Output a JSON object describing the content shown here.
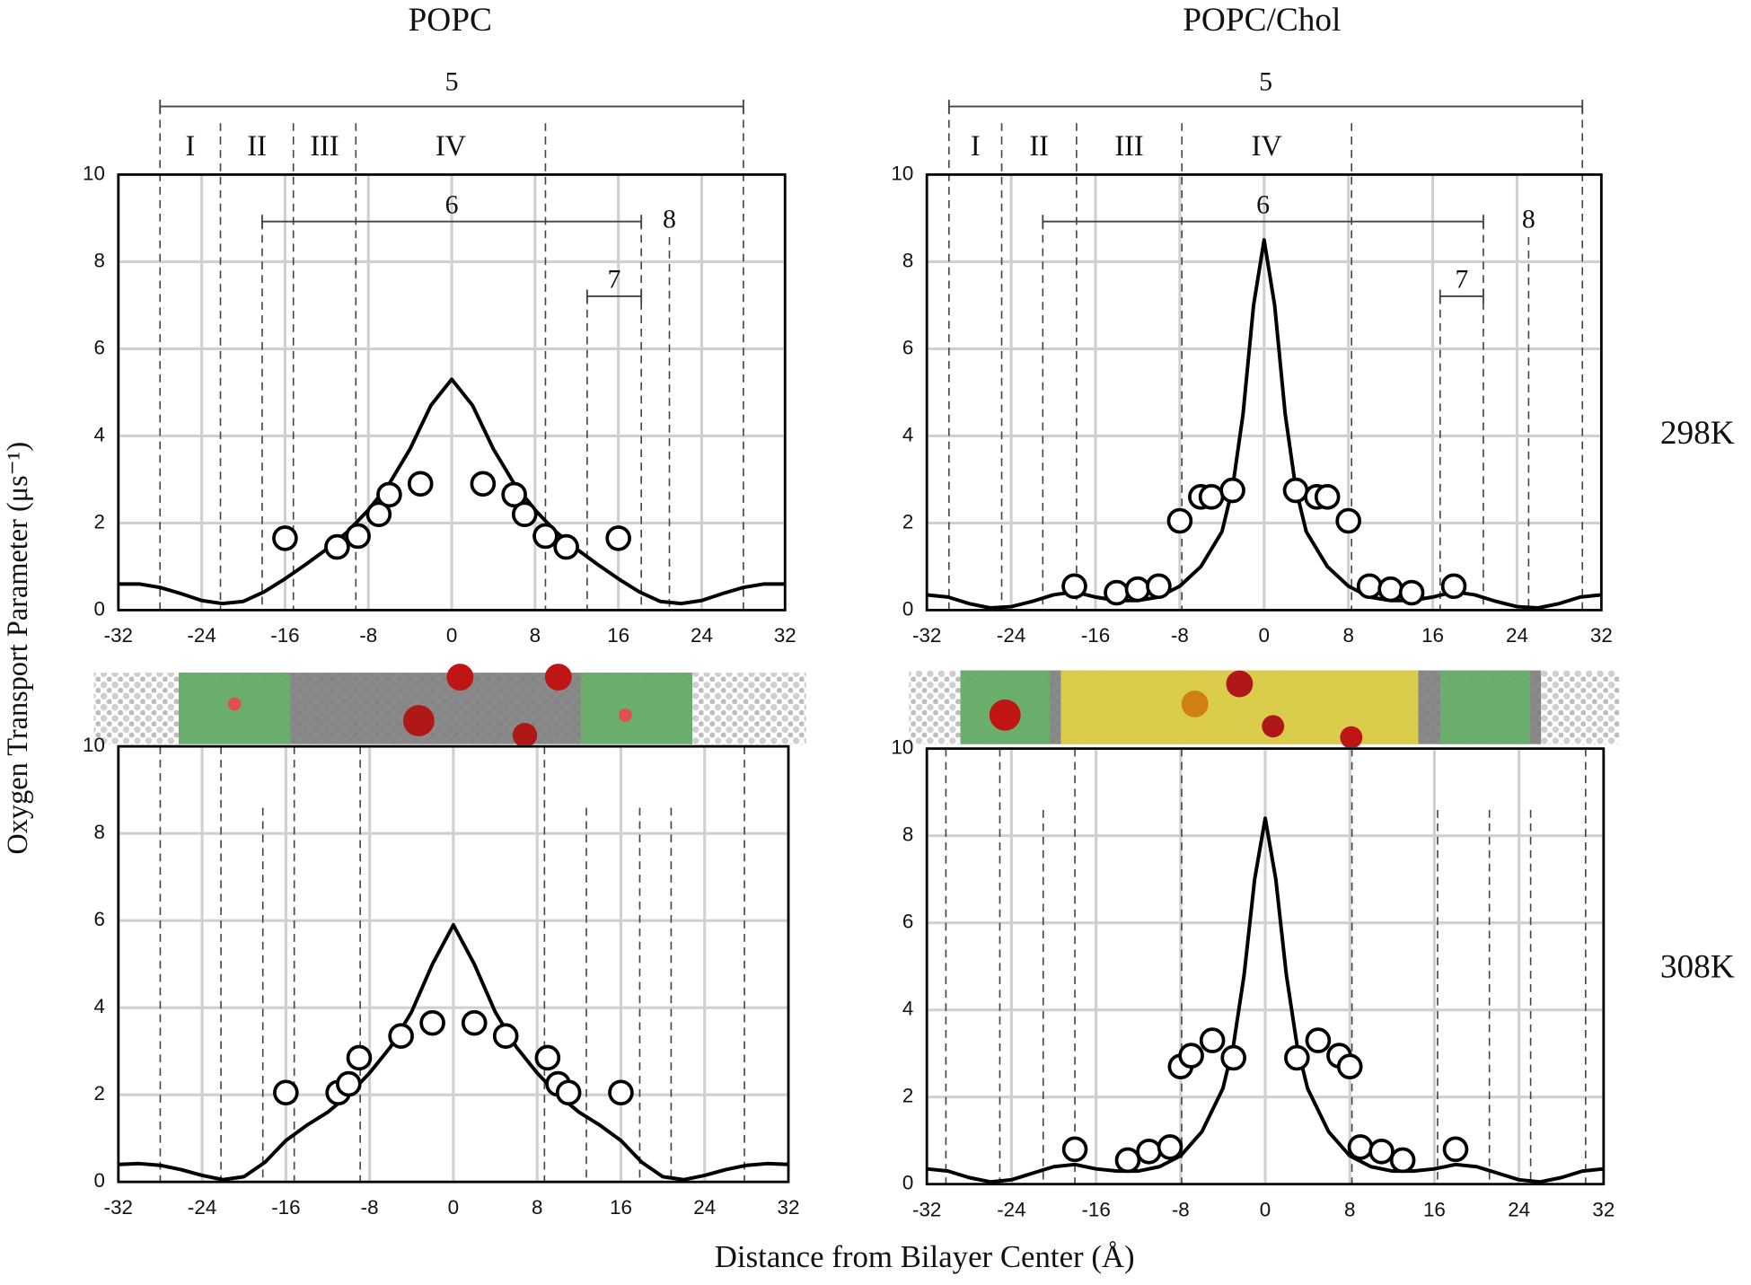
{
  "figure": {
    "column_titles": [
      "POPC",
      "POPC/Chol"
    ],
    "row_labels": [
      "298K",
      "308K"
    ],
    "ylabel": "Oxygen Transport Parameter (μs⁻¹)",
    "xlabel": "Distance from Bilayer Center (Å)"
  },
  "chart_data": [
    {
      "type": "line",
      "xlim": [
        -32,
        32
      ],
      "xticks": [
        -32,
        -24,
        -16,
        -8,
        0,
        8,
        16,
        24,
        32
      ],
      "ylim": [
        0,
        10
      ],
      "yticks": [
        0,
        2,
        4,
        6,
        8,
        10
      ],
      "grid": true,
      "vlines": [
        -28,
        -22.2,
        -18.2,
        -15.2,
        -9.2,
        9,
        13,
        18.2,
        20.9,
        28
      ],
      "region_labels": [
        "I",
        "II",
        "III",
        "IV"
      ],
      "span_labels": [
        "5",
        "6",
        "7",
        "8"
      ],
      "series": [
        {
          "type": "line",
          "color": "#000000",
          "x": [
            -32,
            -30,
            -28,
            -26,
            -24,
            -22,
            -20,
            -18,
            -16,
            -14,
            -12,
            -10,
            -8,
            -6,
            -4,
            -2,
            0,
            2,
            4,
            6,
            8,
            10,
            12,
            14,
            16,
            18,
            20,
            22,
            24,
            26,
            28,
            30,
            32
          ],
          "values": [
            0.6,
            0.6,
            0.52,
            0.38,
            0.22,
            0.15,
            0.2,
            0.42,
            0.72,
            1.05,
            1.4,
            1.8,
            2.3,
            2.9,
            3.7,
            4.7,
            5.3,
            4.7,
            3.7,
            2.9,
            2.3,
            1.8,
            1.4,
            1.05,
            0.72,
            0.42,
            0.2,
            0.15,
            0.22,
            0.38,
            0.52,
            0.6,
            0.6
          ]
        },
        {
          "type": "scatter",
          "color": "#000000",
          "x": [
            -16,
            -11,
            -9,
            -7,
            -6,
            -3,
            3,
            6,
            7,
            9,
            11,
            16
          ],
          "values": [
            1.65,
            1.45,
            1.7,
            2.2,
            2.65,
            2.9,
            2.9,
            2.65,
            2.2,
            1.7,
            1.45,
            1.65
          ]
        }
      ]
    },
    {
      "type": "line",
      "xlim": [
        -32,
        32
      ],
      "xticks": [
        -32,
        -24,
        -16,
        -8,
        0,
        8,
        16,
        24,
        32
      ],
      "ylim": [
        0,
        10
      ],
      "yticks": [
        0,
        2,
        4,
        6,
        8,
        10
      ],
      "grid": true,
      "vlines": [
        -29.9,
        -24.9,
        -21,
        -17.8,
        -7.8,
        8.3,
        16.7,
        20.8,
        25.1,
        30.2
      ],
      "region_labels": [
        "I",
        "II",
        "III",
        "IV"
      ],
      "span_labels": [
        "5",
        "6",
        "7",
        "8"
      ],
      "series": [
        {
          "type": "line",
          "color": "#000000",
          "x": [
            -32,
            -30,
            -28,
            -26,
            -24,
            -22,
            -20,
            -18,
            -16,
            -14,
            -12,
            -10,
            -8,
            -6,
            -4,
            -3,
            -2,
            -1,
            0,
            1,
            2,
            3,
            4,
            6,
            8,
            10,
            12,
            14,
            16,
            18,
            20,
            22,
            24,
            26,
            28,
            30,
            32
          ],
          "values": [
            0.35,
            0.3,
            0.15,
            0.05,
            0.08,
            0.2,
            0.35,
            0.42,
            0.3,
            0.22,
            0.22,
            0.3,
            0.55,
            1.0,
            1.8,
            2.8,
            4.5,
            7.0,
            8.5,
            7.0,
            4.5,
            2.8,
            1.8,
            1.0,
            0.55,
            0.3,
            0.22,
            0.22,
            0.3,
            0.42,
            0.35,
            0.2,
            0.08,
            0.05,
            0.15,
            0.3,
            0.35
          ]
        },
        {
          "type": "scatter",
          "color": "#000000",
          "x": [
            -18,
            -14,
            -12,
            -10,
            -8,
            -6,
            -5,
            -3,
            3,
            5,
            6,
            8,
            10,
            12,
            14,
            18
          ],
          "values": [
            0.55,
            0.4,
            0.48,
            0.55,
            2.05,
            2.6,
            2.6,
            2.75,
            2.75,
            2.6,
            2.6,
            2.05,
            0.55,
            0.48,
            0.4,
            0.55
          ]
        }
      ]
    },
    {
      "type": "line",
      "xlim": [
        -32,
        32
      ],
      "xticks": [
        -32,
        -24,
        -16,
        -8,
        0,
        8,
        16,
        24,
        32
      ],
      "ylim": [
        0,
        10
      ],
      "yticks": [
        0,
        2,
        4,
        6,
        8,
        10
      ],
      "grid": true,
      "vlines": [
        -28,
        -22.2,
        -18.2,
        -15.2,
        -8.9,
        8.7,
        12.7,
        17.8,
        20.8,
        27.8
      ],
      "series": [
        {
          "type": "line",
          "color": "#000000",
          "x": [
            -32,
            -30,
            -28,
            -26,
            -24,
            -22,
            -20,
            -18,
            -16,
            -14,
            -12,
            -10,
            -8,
            -6,
            -4,
            -2,
            0,
            2,
            4,
            6,
            8,
            10,
            12,
            14,
            16,
            18,
            20,
            22,
            24,
            26,
            28,
            30,
            32
          ],
          "values": [
            0.4,
            0.42,
            0.38,
            0.28,
            0.15,
            0.05,
            0.12,
            0.45,
            0.95,
            1.3,
            1.6,
            2.0,
            2.5,
            3.1,
            3.9,
            5.0,
            5.9,
            5.0,
            3.9,
            3.1,
            2.5,
            2.0,
            1.6,
            1.3,
            0.95,
            0.45,
            0.12,
            0.05,
            0.15,
            0.28,
            0.38,
            0.42,
            0.4
          ]
        },
        {
          "type": "scatter",
          "color": "#000000",
          "x": [
            -16,
            -11,
            -10,
            -9,
            -5,
            -2,
            2,
            5,
            9,
            10,
            11,
            16
          ],
          "values": [
            2.05,
            2.05,
            2.25,
            2.85,
            3.35,
            3.65,
            3.65,
            3.35,
            2.85,
            2.25,
            2.05,
            2.05
          ]
        }
      ]
    },
    {
      "type": "line",
      "xlim": [
        -32,
        32
      ],
      "xticks": [
        -32,
        -24,
        -16,
        -8,
        0,
        8,
        16,
        24,
        32
      ],
      "ylim": [
        0,
        10
      ],
      "yticks": [
        0,
        2,
        4,
        6,
        8,
        10
      ],
      "grid": true,
      "vlines": [
        -30.2,
        -25.1,
        -21,
        -18,
        -7.9,
        8.2,
        16.3,
        21.2,
        25.1,
        30.3
      ],
      "series": [
        {
          "type": "line",
          "color": "#000000",
          "x": [
            -32,
            -30,
            -28,
            -26,
            -24,
            -22,
            -20,
            -18,
            -16,
            -14,
            -12,
            -10,
            -8,
            -6,
            -4,
            -3,
            -2,
            -1,
            0,
            1,
            2,
            3,
            4,
            6,
            8,
            10,
            12,
            14,
            16,
            18,
            20,
            22,
            24,
            26,
            28,
            30,
            32
          ],
          "values": [
            0.35,
            0.3,
            0.15,
            0.05,
            0.1,
            0.25,
            0.4,
            0.45,
            0.35,
            0.3,
            0.3,
            0.4,
            0.65,
            1.2,
            2.2,
            3.2,
            4.8,
            7.0,
            8.4,
            7.0,
            4.8,
            3.2,
            2.2,
            1.2,
            0.65,
            0.4,
            0.3,
            0.3,
            0.35,
            0.45,
            0.4,
            0.25,
            0.1,
            0.05,
            0.15,
            0.3,
            0.35
          ]
        },
        {
          "type": "scatter",
          "color": "#000000",
          "x": [
            -18,
            -13,
            -11,
            -9,
            -8,
            -7,
            -5,
            -3,
            3,
            5,
            7,
            8,
            9,
            11,
            13,
            18
          ],
          "values": [
            0.8,
            0.55,
            0.75,
            0.85,
            2.7,
            2.95,
            3.3,
            2.9,
            2.9,
            3.3,
            2.95,
            2.7,
            0.85,
            0.75,
            0.55,
            0.8
          ]
        }
      ]
    }
  ]
}
